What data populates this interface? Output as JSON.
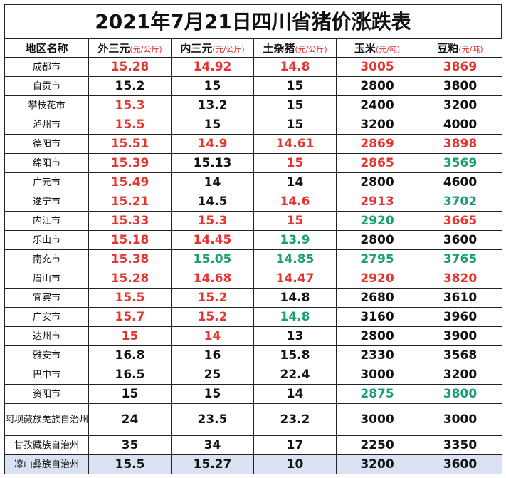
{
  "title": "2021年7月21日四川省猪价涨跌表",
  "headers": [
    {
      "label": "地区名称",
      "unit": ""
    },
    {
      "label": "外三元",
      "unit": "(元/公斤)"
    },
    {
      "label": "内三元",
      "unit": "(元/公斤)"
    },
    {
      "label": "土杂猪",
      "unit": "(元/公斤)"
    },
    {
      "label": "玉米",
      "unit": "(元/吨)"
    },
    {
      "label": "豆粕",
      "unit": "(元/吨)"
    }
  ],
  "colors": {
    "up": "#e3342f",
    "down": "#1a9e77",
    "flat": "#111111"
  },
  "rows": [
    {
      "region": "成都市",
      "cells": [
        {
          "v": "15.28",
          "t": "up"
        },
        {
          "v": "14.92",
          "t": "up"
        },
        {
          "v": "14.8",
          "t": "up"
        },
        {
          "v": "3005",
          "t": "up"
        },
        {
          "v": "3869",
          "t": "up"
        }
      ]
    },
    {
      "region": "自贡市",
      "cells": [
        {
          "v": "15.2",
          "t": "flat"
        },
        {
          "v": "15",
          "t": "flat"
        },
        {
          "v": "15",
          "t": "flat"
        },
        {
          "v": "2800",
          "t": "flat"
        },
        {
          "v": "3800",
          "t": "flat"
        }
      ]
    },
    {
      "region": "攀枝花市",
      "cells": [
        {
          "v": "15.3",
          "t": "up"
        },
        {
          "v": "13.2",
          "t": "flat"
        },
        {
          "v": "15",
          "t": "flat"
        },
        {
          "v": "2400",
          "t": "flat"
        },
        {
          "v": "3200",
          "t": "flat"
        }
      ]
    },
    {
      "region": "泸州市",
      "cells": [
        {
          "v": "15.5",
          "t": "up"
        },
        {
          "v": "15",
          "t": "flat"
        },
        {
          "v": "15",
          "t": "flat"
        },
        {
          "v": "3200",
          "t": "flat"
        },
        {
          "v": "4000",
          "t": "flat"
        }
      ]
    },
    {
      "region": "德阳市",
      "cells": [
        {
          "v": "15.51",
          "t": "up"
        },
        {
          "v": "14.9",
          "t": "up"
        },
        {
          "v": "14.61",
          "t": "up"
        },
        {
          "v": "2869",
          "t": "up"
        },
        {
          "v": "3898",
          "t": "up"
        }
      ]
    },
    {
      "region": "绵阳市",
      "cells": [
        {
          "v": "15.39",
          "t": "up"
        },
        {
          "v": "15.13",
          "t": "flat"
        },
        {
          "v": "15",
          "t": "up"
        },
        {
          "v": "2865",
          "t": "up"
        },
        {
          "v": "3569",
          "t": "down"
        }
      ]
    },
    {
      "region": "广元市",
      "cells": [
        {
          "v": "15.49",
          "t": "up"
        },
        {
          "v": "14",
          "t": "flat"
        },
        {
          "v": "14",
          "t": "flat"
        },
        {
          "v": "2800",
          "t": "flat"
        },
        {
          "v": "4600",
          "t": "flat"
        }
      ]
    },
    {
      "region": "遂宁市",
      "cells": [
        {
          "v": "15.21",
          "t": "up"
        },
        {
          "v": "14.5",
          "t": "flat"
        },
        {
          "v": "14.6",
          "t": "up"
        },
        {
          "v": "2913",
          "t": "up"
        },
        {
          "v": "3702",
          "t": "down"
        }
      ]
    },
    {
      "region": "内江市",
      "cells": [
        {
          "v": "15.33",
          "t": "up"
        },
        {
          "v": "15.3",
          "t": "up"
        },
        {
          "v": "15",
          "t": "up"
        },
        {
          "v": "2920",
          "t": "down"
        },
        {
          "v": "3665",
          "t": "up"
        }
      ]
    },
    {
      "region": "乐山市",
      "cells": [
        {
          "v": "15.18",
          "t": "up"
        },
        {
          "v": "14.45",
          "t": "up"
        },
        {
          "v": "13.9",
          "t": "down"
        },
        {
          "v": "2800",
          "t": "flat"
        },
        {
          "v": "3600",
          "t": "flat"
        }
      ]
    },
    {
      "region": "南充市",
      "cells": [
        {
          "v": "15.38",
          "t": "up"
        },
        {
          "v": "15.05",
          "t": "down"
        },
        {
          "v": "14.85",
          "t": "down"
        },
        {
          "v": "2795",
          "t": "down"
        },
        {
          "v": "3765",
          "t": "down"
        }
      ]
    },
    {
      "region": "眉山市",
      "cells": [
        {
          "v": "15.28",
          "t": "up"
        },
        {
          "v": "14.68",
          "t": "up"
        },
        {
          "v": "14.47",
          "t": "up"
        },
        {
          "v": "2920",
          "t": "up"
        },
        {
          "v": "3820",
          "t": "up"
        }
      ]
    },
    {
      "region": "宜宾市",
      "cells": [
        {
          "v": "15.5",
          "t": "up"
        },
        {
          "v": "15.2",
          "t": "up"
        },
        {
          "v": "14.8",
          "t": "flat"
        },
        {
          "v": "2680",
          "t": "flat"
        },
        {
          "v": "3610",
          "t": "flat"
        }
      ]
    },
    {
      "region": "广安市",
      "cells": [
        {
          "v": "15.7",
          "t": "up"
        },
        {
          "v": "15.2",
          "t": "up"
        },
        {
          "v": "14.8",
          "t": "down"
        },
        {
          "v": "3160",
          "t": "flat"
        },
        {
          "v": "3960",
          "t": "flat"
        }
      ]
    },
    {
      "region": "达州市",
      "cells": [
        {
          "v": "15",
          "t": "up"
        },
        {
          "v": "14",
          "t": "up"
        },
        {
          "v": "13",
          "t": "flat"
        },
        {
          "v": "2800",
          "t": "flat"
        },
        {
          "v": "3900",
          "t": "flat"
        }
      ]
    },
    {
      "region": "雅安市",
      "cells": [
        {
          "v": "16.8",
          "t": "flat"
        },
        {
          "v": "16",
          "t": "flat"
        },
        {
          "v": "15.8",
          "t": "flat"
        },
        {
          "v": "2330",
          "t": "flat"
        },
        {
          "v": "3568",
          "t": "flat"
        }
      ]
    },
    {
      "region": "巴中市",
      "cells": [
        {
          "v": "16.5",
          "t": "flat"
        },
        {
          "v": "25",
          "t": "flat"
        },
        {
          "v": "22.4",
          "t": "flat"
        },
        {
          "v": "3000",
          "t": "flat"
        },
        {
          "v": "3200",
          "t": "flat"
        }
      ]
    },
    {
      "region": "资阳市",
      "cells": [
        {
          "v": "15",
          "t": "flat"
        },
        {
          "v": "15",
          "t": "flat"
        },
        {
          "v": "14",
          "t": "flat"
        },
        {
          "v": "2875",
          "t": "down"
        },
        {
          "v": "3800",
          "t": "down"
        }
      ]
    },
    {
      "region": "阿坝藏族羌族自治州",
      "tall": true,
      "cells": [
        {
          "v": "24",
          "t": "flat"
        },
        {
          "v": "23.5",
          "t": "flat"
        },
        {
          "v": "23.2",
          "t": "flat"
        },
        {
          "v": "3000",
          "t": "flat"
        },
        {
          "v": "3000",
          "t": "flat"
        }
      ]
    },
    {
      "region": "甘孜藏族自治州",
      "cells": [
        {
          "v": "35",
          "t": "flat"
        },
        {
          "v": "34",
          "t": "flat"
        },
        {
          "v": "17",
          "t": "flat"
        },
        {
          "v": "2250",
          "t": "flat"
        },
        {
          "v": "3350",
          "t": "flat"
        }
      ]
    },
    {
      "region": "凉山彝族自治州",
      "highlight": true,
      "cells": [
        {
          "v": "15.5",
          "t": "flat"
        },
        {
          "v": "15.27",
          "t": "flat"
        },
        {
          "v": "10",
          "t": "flat"
        },
        {
          "v": "3200",
          "t": "flat"
        },
        {
          "v": "3600",
          "t": "flat"
        }
      ]
    }
  ]
}
